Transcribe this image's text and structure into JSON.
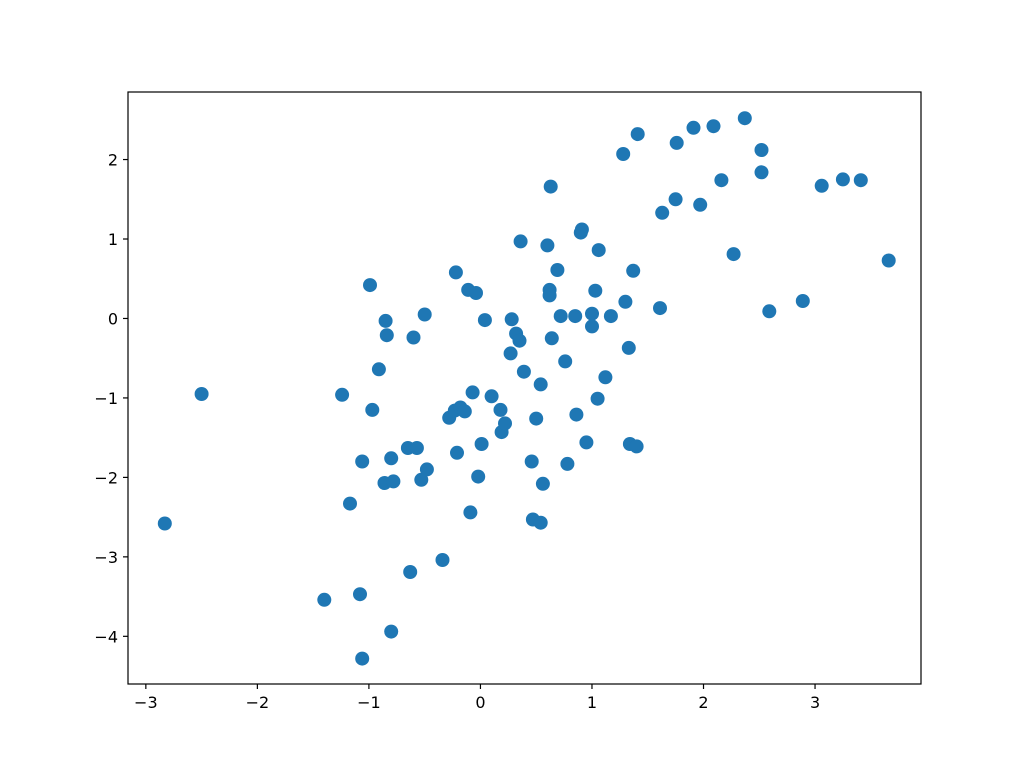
{
  "chart_data": {
    "type": "scatter",
    "title": "",
    "xlabel": "",
    "ylabel": "",
    "xlim": [
      -3.16,
      3.95
    ],
    "ylim": [
      -4.6,
      2.85
    ],
    "xticks": [
      -3,
      -2,
      -1,
      0,
      1,
      2,
      3
    ],
    "yticks": [
      -4,
      -3,
      -2,
      -1,
      0,
      1,
      2
    ],
    "xtick_labels": [
      "−3",
      "−2",
      "−1",
      "0",
      "1",
      "2",
      "3"
    ],
    "ytick_labels": [
      "−4",
      "−3",
      "−2",
      "−1",
      "0",
      "1",
      "2"
    ],
    "grid": false,
    "marker_color": "#1f77b4",
    "points": [
      [
        -2.83,
        -2.58
      ],
      [
        -2.5,
        -0.95
      ],
      [
        -1.4,
        -3.54
      ],
      [
        -1.24,
        -0.96
      ],
      [
        -1.17,
        -2.33
      ],
      [
        -1.08,
        -3.47
      ],
      [
        -1.06,
        -1.8
      ],
      [
        -1.06,
        -4.28
      ],
      [
        -0.99,
        0.42
      ],
      [
        -0.97,
        -1.15
      ],
      [
        -0.91,
        -0.64
      ],
      [
        -0.86,
        -2.07
      ],
      [
        -0.85,
        -0.03
      ],
      [
        -0.84,
        -0.21
      ],
      [
        -0.8,
        -1.76
      ],
      [
        -0.8,
        -3.94
      ],
      [
        -0.78,
        -2.05
      ],
      [
        -0.65,
        -1.63
      ],
      [
        -0.63,
        -3.19
      ],
      [
        -0.6,
        -0.24
      ],
      [
        -0.57,
        -1.63
      ],
      [
        -0.53,
        -2.03
      ],
      [
        -0.5,
        0.05
      ],
      [
        -0.48,
        -1.9
      ],
      [
        -0.34,
        -3.04
      ],
      [
        -0.28,
        -1.25
      ],
      [
        -0.23,
        -1.16
      ],
      [
        -0.22,
        0.58
      ],
      [
        -0.21,
        -1.69
      ],
      [
        -0.18,
        -1.12
      ],
      [
        -0.14,
        -1.17
      ],
      [
        -0.11,
        0.36
      ],
      [
        -0.09,
        -2.44
      ],
      [
        -0.07,
        -0.93
      ],
      [
        -0.04,
        0.32
      ],
      [
        -0.02,
        -1.99
      ],
      [
        0.01,
        -1.58
      ],
      [
        0.04,
        -0.02
      ],
      [
        0.1,
        -0.98
      ],
      [
        0.18,
        -1.15
      ],
      [
        0.19,
        -1.43
      ],
      [
        0.22,
        -1.32
      ],
      [
        0.27,
        -0.44
      ],
      [
        0.28,
        -0.01
      ],
      [
        0.32,
        -0.19
      ],
      [
        0.35,
        -0.28
      ],
      [
        0.36,
        0.97
      ],
      [
        0.39,
        -0.67
      ],
      [
        0.46,
        -1.8
      ],
      [
        0.47,
        -2.53
      ],
      [
        0.5,
        -1.26
      ],
      [
        0.54,
        -2.57
      ],
      [
        0.54,
        -0.83
      ],
      [
        0.56,
        -2.08
      ],
      [
        0.6,
        0.92
      ],
      [
        0.62,
        0.36
      ],
      [
        0.62,
        0.29
      ],
      [
        0.63,
        1.66
      ],
      [
        0.64,
        -0.25
      ],
      [
        0.69,
        0.61
      ],
      [
        0.72,
        0.03
      ],
      [
        0.76,
        -0.54
      ],
      [
        0.78,
        -1.83
      ],
      [
        0.85,
        0.03
      ],
      [
        0.86,
        -1.21
      ],
      [
        0.9,
        1.08
      ],
      [
        0.91,
        1.12
      ],
      [
        0.95,
        -1.56
      ],
      [
        1.0,
        0.06
      ],
      [
        1.0,
        -0.1
      ],
      [
        1.03,
        0.35
      ],
      [
        1.05,
        -1.01
      ],
      [
        1.06,
        0.86
      ],
      [
        1.12,
        -0.74
      ],
      [
        1.17,
        0.03
      ],
      [
        1.28,
        2.07
      ],
      [
        1.3,
        0.21
      ],
      [
        1.33,
        -0.37
      ],
      [
        1.34,
        -1.58
      ],
      [
        1.37,
        0.6
      ],
      [
        1.4,
        -1.61
      ],
      [
        1.41,
        2.32
      ],
      [
        1.61,
        0.13
      ],
      [
        1.63,
        1.33
      ],
      [
        1.75,
        1.5
      ],
      [
        1.76,
        2.21
      ],
      [
        1.91,
        2.4
      ],
      [
        1.97,
        1.43
      ],
      [
        2.09,
        2.42
      ],
      [
        2.16,
        1.74
      ],
      [
        2.27,
        0.81
      ],
      [
        2.37,
        2.52
      ],
      [
        2.52,
        1.84
      ],
      [
        2.52,
        2.12
      ],
      [
        2.59,
        0.09
      ],
      [
        2.89,
        0.22
      ],
      [
        3.06,
        1.67
      ],
      [
        3.25,
        1.75
      ],
      [
        3.41,
        1.74
      ],
      [
        3.66,
        0.73
      ]
    ]
  }
}
